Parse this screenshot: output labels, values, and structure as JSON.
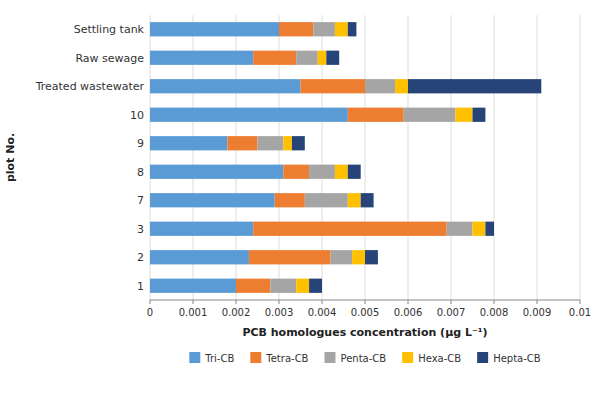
{
  "chart_data": {
    "type": "bar",
    "orientation": "horizontal",
    "stacked": true,
    "categories": [
      "1",
      "2",
      "3",
      "7",
      "8",
      "9",
      "10",
      "Treated wastewater",
      "Raw sewage",
      "Settling tank"
    ],
    "series": [
      {
        "name": "Tri-CB",
        "color": "#5B9BD5",
        "values": [
          0.002,
          0.0023,
          0.0024,
          0.0029,
          0.0031,
          0.0018,
          0.0046,
          0.0035,
          0.0024,
          0.003
        ]
      },
      {
        "name": "Tetra-CB",
        "color": "#ED7D31",
        "values": [
          0.0008,
          0.0019,
          0.0045,
          0.0007,
          0.0006,
          0.0007,
          0.0013,
          0.0015,
          0.001,
          0.0008
        ]
      },
      {
        "name": "Penta-CB",
        "color": "#A5A5A5",
        "values": [
          0.0006,
          0.0005,
          0.0006,
          0.001,
          0.0006,
          0.0006,
          0.0012,
          0.0007,
          0.0005,
          0.0005
        ]
      },
      {
        "name": "Hexa-CB",
        "color": "#FFC000",
        "values": [
          0.0003,
          0.0003,
          0.0003,
          0.0003,
          0.0003,
          0.0002,
          0.0004,
          0.0003,
          0.0002,
          0.0003
        ]
      },
      {
        "name": "Hepta-CB",
        "color": "#264478",
        "values": [
          0.0003,
          0.0003,
          0.0002,
          0.0003,
          0.0003,
          0.0003,
          0.0003,
          0.0031,
          0.0003,
          0.0002
        ]
      }
    ],
    "xlabel": "PCB homologues concentration (μg L⁻¹)",
    "ylabel": "plot No.",
    "xlim": [
      0,
      0.01
    ],
    "xticks": [
      0,
      0.001,
      0.002,
      0.003,
      0.004,
      0.005,
      0.006,
      0.007,
      0.008,
      0.009,
      0.01
    ],
    "grid": true,
    "legend": "bottom"
  }
}
